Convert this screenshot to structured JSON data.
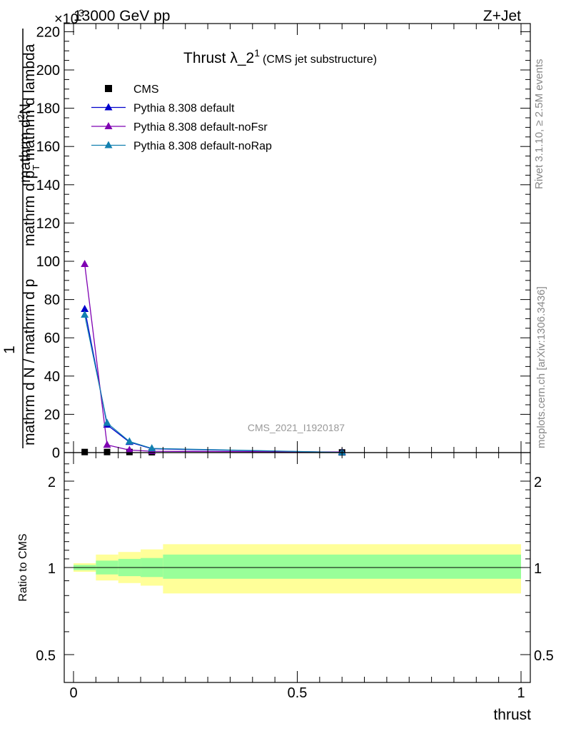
{
  "header": {
    "left": "13000 GeV pp",
    "right": "Z+Jet",
    "exponent": "×10",
    "exponent_power": "3"
  },
  "title": {
    "main": "Thrust λ_2",
    "superscript": "1",
    "sub": "(CMS jet substructure)"
  },
  "side_labels": {
    "rivet": "Rivet 3.1.10, ≥ 2.5M events",
    "mcplots": "mcplots.cern.ch [arXiv:1306.3436]"
  },
  "watermark": "CMS_2021_I1920187",
  "y_label": {
    "numerator_1": "1",
    "denominator_1": "mathrm d N / mathrm d p",
    "numerator_2": "mathrm d",
    "numerator_2_sup": "2",
    "numerator_2_rest": "N",
    "denominator_2": "mathrm d p",
    "denominator_2_sub": "T",
    "denominator_2_rest": " mathrm d lambda"
  },
  "ratio_label": "Ratio to CMS",
  "x_label": "thrust",
  "legend": [
    {
      "label": "CMS",
      "marker": "square",
      "color": "#000000"
    },
    {
      "label": "Pythia 8.308 default",
      "marker": "triangle",
      "color": "#0000cc"
    },
    {
      "label": "Pythia 8.308 default-noFsr",
      "marker": "triangle",
      "color": "#7f00b2"
    },
    {
      "label": "Pythia 8.308 default-noRap",
      "marker": "triangle",
      "color": "#1280b0"
    }
  ],
  "chart_data": {
    "type": "line",
    "x_axis": {
      "range": [
        0,
        1
      ],
      "ticks": [
        "0",
        "0.5",
        "1"
      ]
    },
    "main_panel": {
      "y_range": [
        0,
        222
      ],
      "y_ticks": [
        "0",
        "20",
        "40",
        "60",
        "80",
        "100",
        "120",
        "140",
        "160",
        "180",
        "200",
        "220"
      ],
      "y_scale_exponent": 3,
      "series": [
        {
          "name": "CMS",
          "x": [
            0.025,
            0.075,
            0.125,
            0.175,
            0.6
          ],
          "y": [
            0.3,
            0.3,
            0.3,
            0.2,
            0.1
          ]
        },
        {
          "name": "Pythia 8.308 default",
          "x": [
            0.025,
            0.075,
            0.125,
            0.175,
            0.6
          ],
          "y": [
            75,
            14.5,
            5.5,
            2.0,
            0.1
          ]
        },
        {
          "name": "Pythia 8.308 default-noFsr",
          "x": [
            0.025,
            0.075,
            0.125,
            0.175,
            0.6
          ],
          "y": [
            98.5,
            4.0,
            1.3,
            0.7,
            0.3
          ]
        },
        {
          "name": "Pythia 8.308 default-noRap",
          "x": [
            0.025,
            0.075,
            0.125,
            0.175,
            0.6
          ],
          "y": [
            72,
            15.5,
            5.8,
            2.2,
            0.1
          ]
        }
      ]
    },
    "ratio_panel": {
      "y_range": [
        0.4,
        2.3
      ],
      "y_ticks": [
        "0.5",
        "1",
        "2"
      ],
      "bins": [
        {
          "x0": 0.0,
          "x1": 0.05,
          "inner": [
            0.97,
            1.03
          ],
          "outer": [
            0.95,
            1.05
          ]
        },
        {
          "x0": 0.05,
          "x1": 0.1,
          "inner": [
            0.92,
            1.08
          ],
          "outer": [
            0.85,
            1.15
          ]
        },
        {
          "x0": 0.1,
          "x1": 0.15,
          "inner": [
            0.9,
            1.1
          ],
          "outer": [
            0.82,
            1.18
          ]
        },
        {
          "x0": 0.15,
          "x1": 0.2,
          "inner": [
            0.89,
            1.11
          ],
          "outer": [
            0.79,
            1.21
          ]
        },
        {
          "x0": 0.2,
          "x1": 1.0,
          "inner": [
            0.87,
            1.15
          ],
          "outer": [
            0.7,
            1.27
          ]
        }
      ],
      "band_colors": {
        "inner": "#99ff99",
        "outer": "#ffff99"
      }
    }
  }
}
